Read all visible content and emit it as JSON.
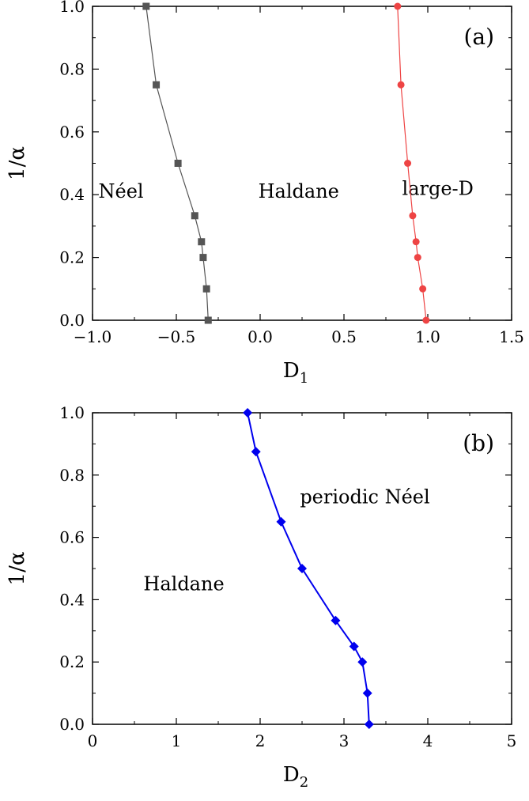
{
  "chart_data": [
    {
      "type": "scatter",
      "panel_label": "(a)",
      "xlabel": "D",
      "xlabel_sub": "1",
      "ylabel": "1/α",
      "xlim": [
        -1.0,
        1.5
      ],
      "ylim": [
        0.0,
        1.0
      ],
      "xticks": [
        -1.0,
        -0.5,
        0.0,
        0.5,
        1.0,
        1.5
      ],
      "xtick_labels": [
        "−1.0",
        "−0.5",
        "0.0",
        "0.5",
        "1.0",
        "1.5"
      ],
      "yticks": [
        0.0,
        0.2,
        0.4,
        0.6,
        0.8,
        1.0
      ],
      "ytick_labels": [
        "0.0",
        "0.2",
        "0.4",
        "0.6",
        "0.8",
        "1.0"
      ],
      "regions": [
        {
          "text": "Néel",
          "x": -0.83,
          "y": 0.41
        },
        {
          "text": "Haldane",
          "x": 0.23,
          "y": 0.41
        },
        {
          "text": "large-D",
          "x": 1.06,
          "y": 0.42
        }
      ],
      "series": [
        {
          "marker": "square",
          "color": "#555555",
          "line_color": "#555555",
          "x": [
            -0.31,
            -0.32,
            -0.34,
            -0.35,
            -0.39,
            -0.49,
            -0.62,
            -0.68
          ],
          "y": [
            0.0,
            0.1,
            0.2,
            0.25,
            0.333,
            0.5,
            0.75,
            1.0
          ]
        },
        {
          "marker": "circle",
          "color": "#ee4444",
          "line_color": "#ee4444",
          "x": [
            0.99,
            0.97,
            0.94,
            0.93,
            0.91,
            0.88,
            0.84,
            0.82
          ],
          "y": [
            0.0,
            0.1,
            0.2,
            0.25,
            0.333,
            0.5,
            0.75,
            1.0
          ]
        }
      ]
    },
    {
      "type": "line",
      "panel_label": "(b)",
      "xlabel": "D",
      "xlabel_sub": "2",
      "ylabel": "1/α",
      "xlim": [
        0,
        5
      ],
      "ylim": [
        0.0,
        1.0
      ],
      "xticks": [
        0,
        1,
        2,
        3,
        4,
        5
      ],
      "xtick_labels": [
        "0",
        "1",
        "2",
        "3",
        "4",
        "5"
      ],
      "yticks": [
        0.0,
        0.2,
        0.4,
        0.6,
        0.8,
        1.0
      ],
      "ytick_labels": [
        "0.0",
        "0.2",
        "0.4",
        "0.6",
        "0.8",
        "1.0"
      ],
      "regions": [
        {
          "text": "Haldane",
          "x": 1.09,
          "y": 0.45
        },
        {
          "text": "periodic Néel",
          "x": 3.25,
          "y": 0.73
        }
      ],
      "series": [
        {
          "marker": "diamond",
          "color": "#0000ee",
          "line_color": "#0000ee",
          "x": [
            3.3,
            3.28,
            3.22,
            3.12,
            2.9,
            2.5,
            2.25,
            1.95,
            1.85
          ],
          "y": [
            0.0,
            0.1,
            0.2,
            0.25,
            0.333,
            0.5,
            0.65,
            0.875,
            1.0
          ]
        }
      ]
    }
  ]
}
